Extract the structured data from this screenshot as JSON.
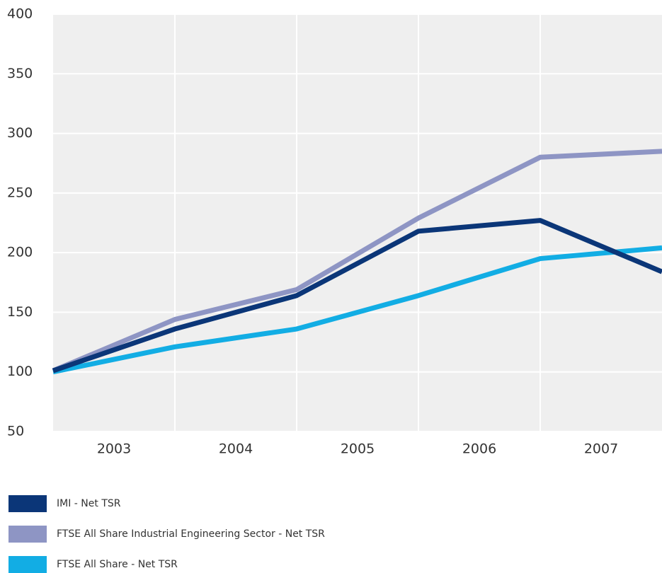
{
  "chart_data": {
    "type": "line",
    "x": [
      0,
      1,
      2,
      3,
      4,
      5
    ],
    "xlim": [
      0,
      5
    ],
    "xticks": [
      {
        "value": 0.5,
        "label": "2003"
      },
      {
        "value": 1.5,
        "label": "2004"
      },
      {
        "value": 2.5,
        "label": "2005"
      },
      {
        "value": 3.5,
        "label": "2006"
      },
      {
        "value": 4.5,
        "label": "2007"
      }
    ],
    "ylim": [
      50,
      400
    ],
    "yticks": [
      50,
      100,
      150,
      200,
      250,
      300,
      350,
      400
    ],
    "grid": true,
    "series": [
      {
        "name": "IMI - Net TSR",
        "color": "#0b3678",
        "values": [
          101,
          136,
          164,
          218,
          227,
          184
        ]
      },
      {
        "name": "FTSE All Share Industrial Engineering Sector - Net TSR",
        "color": "#8e95c4",
        "values": [
          101,
          144,
          169,
          229,
          280,
          285
        ]
      },
      {
        "name": "FTSE All Share - Net TSR",
        "color": "#12ade4",
        "values": [
          100,
          121,
          136,
          164,
          195,
          204
        ]
      }
    ]
  }
}
